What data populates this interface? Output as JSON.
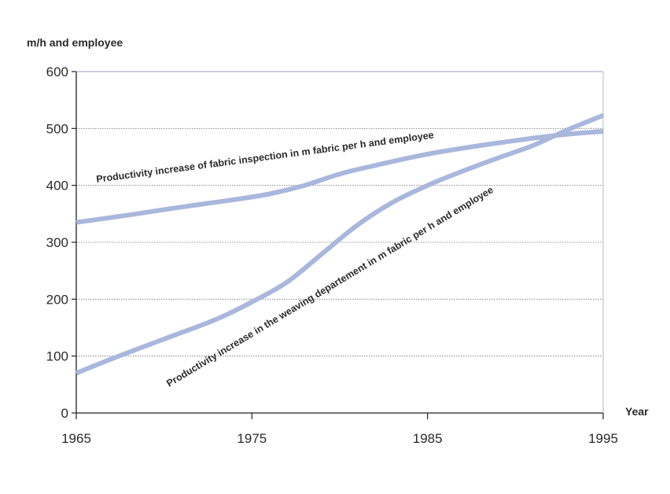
{
  "chart_data": {
    "type": "line",
    "title": "",
    "ylabel": "m/h and employee",
    "xlabel": "Year",
    "xlim": [
      1965,
      1995
    ],
    "ylim": [
      0,
      600
    ],
    "xticks": [
      "1965",
      "1975",
      "1985",
      "1995"
    ],
    "yticks": [
      "0",
      "100",
      "200",
      "300",
      "400",
      "500",
      "600"
    ],
    "grid": "horizontal",
    "line_color": "#a9b7dc",
    "series": [
      {
        "name": "Productivity increase of fabric inspection in m  fabric per h and employee",
        "x": [
          1965,
          1968,
          1971,
          1974,
          1976,
          1978,
          1980,
          1982,
          1985,
          1988,
          1991,
          1993,
          1995
        ],
        "y": [
          335,
          348,
          362,
          375,
          385,
          400,
          420,
          435,
          455,
          470,
          483,
          490,
          495
        ]
      },
      {
        "name": "Productivity increase in the weaving departement in m  fabric per h and employee",
        "x": [
          1965,
          1967,
          1970,
          1973,
          1975,
          1977,
          1979,
          1981,
          1983,
          1985,
          1987,
          1989,
          1991,
          1993,
          1995
        ],
        "y": [
          70,
          95,
          130,
          165,
          195,
          230,
          280,
          330,
          370,
          400,
          425,
          448,
          470,
          498,
          523
        ]
      }
    ]
  }
}
